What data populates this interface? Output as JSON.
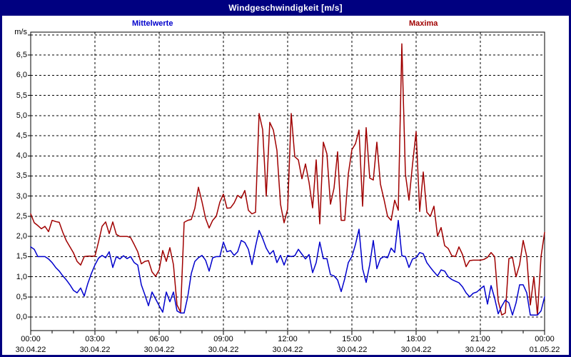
{
  "title_bar": {
    "text": "Windgeschwindigkeit [m/s]"
  },
  "colors": {
    "frame": "#000080",
    "title_bar_bg": "#000080",
    "title_bar_text": "#ffffff",
    "grid": "#000000",
    "axis_text": "#000000",
    "mean_line": "#0000cc",
    "max_line": "#a00000",
    "background": "#ffffff"
  },
  "chart_data": {
    "type": "line",
    "title": "Windgeschwindigkeit [m/s]",
    "legend_position": "top",
    "grid": "dashed",
    "x_start_hour": 0,
    "step_minutes": 10,
    "x_axis": {
      "hours_span": 24,
      "minor_tick_hours": 1,
      "major_tick_hours": 3,
      "ticks": [
        {
          "time": "00:00",
          "date": "30.04.22"
        },
        {
          "time": "03:00",
          "date": "30.04.22"
        },
        {
          "time": "06:00",
          "date": "30.04.22"
        },
        {
          "time": "09:00",
          "date": "30.04.22"
        },
        {
          "time": "12:00",
          "date": "30.04.22"
        },
        {
          "time": "15:00",
          "date": "30.04.22"
        },
        {
          "time": "18:00",
          "date": "30.04.22"
        },
        {
          "time": "21:00",
          "date": "30.04.22"
        },
        {
          "time": "00:00",
          "date": "01.05.22"
        }
      ]
    },
    "y_axis": {
      "unit": "m/s",
      "min": 0.0,
      "max": 7.0,
      "gridline_step": 0.5,
      "tick_labels": [
        "0,0",
        "0,5",
        "1,0",
        "1,5",
        "2,0",
        "2,5",
        "3,0",
        "3,5",
        "4,0",
        "4,5",
        "5,0",
        "5,5",
        "6,0",
        "6,5"
      ]
    },
    "series": [
      {
        "name": "Mittelwerte",
        "color": "#0000cc",
        "values": [
          1.74,
          1.68,
          1.5,
          1.5,
          1.5,
          1.44,
          1.35,
          1.23,
          1.14,
          1.02,
          0.92,
          0.8,
          0.66,
          0.6,
          0.72,
          0.52,
          0.83,
          1.08,
          1.29,
          1.46,
          1.53,
          1.47,
          1.62,
          1.23,
          1.5,
          1.44,
          1.52,
          1.45,
          1.5,
          1.35,
          1.29,
          0.8,
          0.55,
          0.28,
          0.62,
          0.45,
          0.28,
          0.12,
          0.62,
          0.38,
          0.62,
          0.15,
          0.1,
          0.1,
          0.5,
          1.08,
          1.38,
          1.47,
          1.53,
          1.41,
          1.14,
          1.47,
          1.5,
          1.5,
          1.86,
          1.62,
          1.65,
          1.53,
          1.62,
          1.9,
          1.85,
          1.68,
          1.3,
          1.75,
          2.15,
          1.95,
          1.71,
          1.56,
          1.65,
          1.35,
          1.53,
          1.29,
          1.53,
          1.5,
          1.52,
          1.68,
          1.56,
          1.44,
          1.55,
          1.1,
          1.35,
          1.86,
          1.45,
          1.45,
          1.05,
          1.02,
          0.92,
          0.63,
          0.95,
          1.35,
          1.5,
          1.8,
          2.18,
          1.2,
          0.86,
          1.3,
          1.9,
          1.2,
          1.45,
          1.5,
          1.47,
          1.71,
          1.6,
          2.4,
          1.52,
          1.5,
          1.23,
          1.44,
          1.47,
          1.6,
          1.57,
          1.35,
          1.23,
          1.12,
          1.02,
          1.17,
          1.14,
          1.0,
          0.93,
          0.89,
          0.85,
          0.75,
          0.6,
          0.5,
          0.59,
          0.62,
          0.7,
          0.77,
          0.32,
          0.78,
          0.47,
          0.08,
          0.27,
          0.42,
          0.35,
          0.05,
          0.35,
          0.8,
          0.8,
          0.6,
          0.05,
          0.05,
          0.05,
          0.15,
          0.5
        ]
      },
      {
        "name": "Maxima",
        "color": "#a00000",
        "values": [
          2.56,
          2.34,
          2.27,
          2.19,
          2.25,
          2.12,
          2.4,
          2.37,
          2.35,
          2.1,
          1.89,
          1.74,
          1.59,
          1.38,
          1.29,
          1.5,
          1.51,
          1.51,
          1.51,
          1.86,
          2.25,
          2.36,
          2.07,
          2.36,
          2.05,
          2.0,
          2.0,
          2.0,
          1.97,
          1.8,
          1.62,
          1.32,
          1.38,
          1.4,
          1.12,
          1.01,
          1.17,
          1.65,
          1.38,
          1.72,
          1.3,
          0.3,
          0.12,
          2.35,
          2.4,
          2.42,
          2.7,
          3.22,
          2.86,
          2.45,
          2.21,
          2.4,
          2.5,
          2.85,
          3.05,
          2.7,
          2.71,
          2.83,
          3.02,
          2.95,
          3.14,
          2.65,
          2.56,
          2.6,
          5.05,
          4.65,
          3.0,
          4.83,
          4.64,
          4.13,
          2.8,
          2.34,
          2.68,
          5.05,
          3.98,
          3.9,
          3.43,
          3.8,
          3.34,
          2.71,
          3.9,
          2.31,
          4.34,
          4.05,
          2.8,
          3.2,
          4.1,
          2.4,
          2.4,
          3.55,
          4.15,
          4.3,
          4.64,
          2.75,
          4.7,
          3.45,
          3.4,
          4.34,
          3.3,
          2.92,
          2.5,
          2.4,
          2.9,
          2.65,
          6.78,
          3.55,
          2.9,
          3.79,
          4.6,
          2.62,
          3.6,
          2.6,
          2.5,
          2.75,
          2.01,
          2.22,
          1.77,
          1.7,
          1.52,
          1.5,
          1.74,
          1.55,
          1.25,
          1.4,
          1.41,
          1.41,
          1.41,
          1.43,
          1.48,
          1.6,
          1.5,
          0.4,
          0.05,
          0.1,
          1.45,
          1.48,
          1.0,
          1.3,
          1.9,
          1.5,
          0.3,
          1.0,
          0.05,
          1.5,
          2.1
        ]
      }
    ]
  }
}
